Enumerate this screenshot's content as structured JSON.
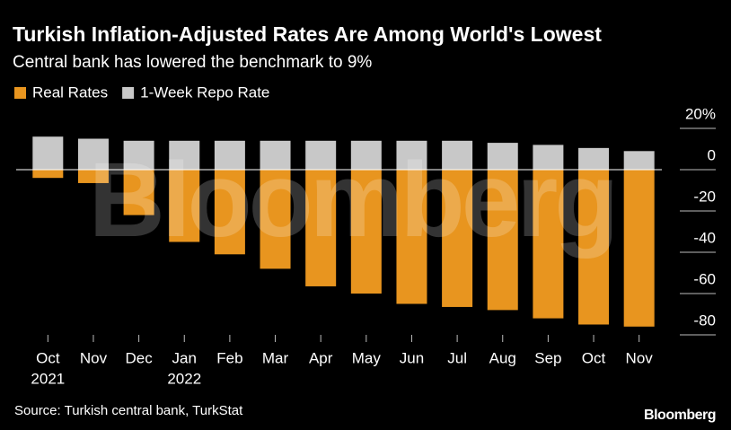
{
  "chart_data": {
    "type": "bar",
    "title": "Turkish Inflation-Adjusted Rates Are Among World's Lowest",
    "subtitle": "Central bank has lowered the benchmark to 9%",
    "categories": [
      "Oct",
      "Nov",
      "Dec",
      "Jan",
      "Feb",
      "Mar",
      "Apr",
      "May",
      "Jun",
      "Jul",
      "Aug",
      "Sep",
      "Oct",
      "Nov"
    ],
    "category_years": [
      "2021",
      null,
      null,
      "2022",
      null,
      null,
      null,
      null,
      null,
      null,
      null,
      null,
      null,
      null
    ],
    "series": [
      {
        "name": "Real Rates",
        "color": "#e8951f",
        "values": [
          -4,
          -6.5,
          -22,
          -35,
          -41,
          -48,
          -56.5,
          -60,
          -65,
          -66.5,
          -68,
          -72,
          -75,
          -76
        ]
      },
      {
        "name": "1-Week Repo Rate",
        "color": "#c8c8c8",
        "values": [
          16,
          15,
          14,
          14,
          14,
          14,
          14,
          14,
          14,
          14,
          13,
          12,
          10.5,
          9
        ]
      }
    ],
    "ylim": [
      -80,
      20
    ],
    "yticks": [
      {
        "value": 20,
        "label": "20%"
      },
      0,
      -20,
      -40,
      -60,
      -80
    ],
    "source": "Source: Turkish central bank, TurkStat",
    "watermark": "Bloomberg",
    "logo": "Bloomberg"
  }
}
